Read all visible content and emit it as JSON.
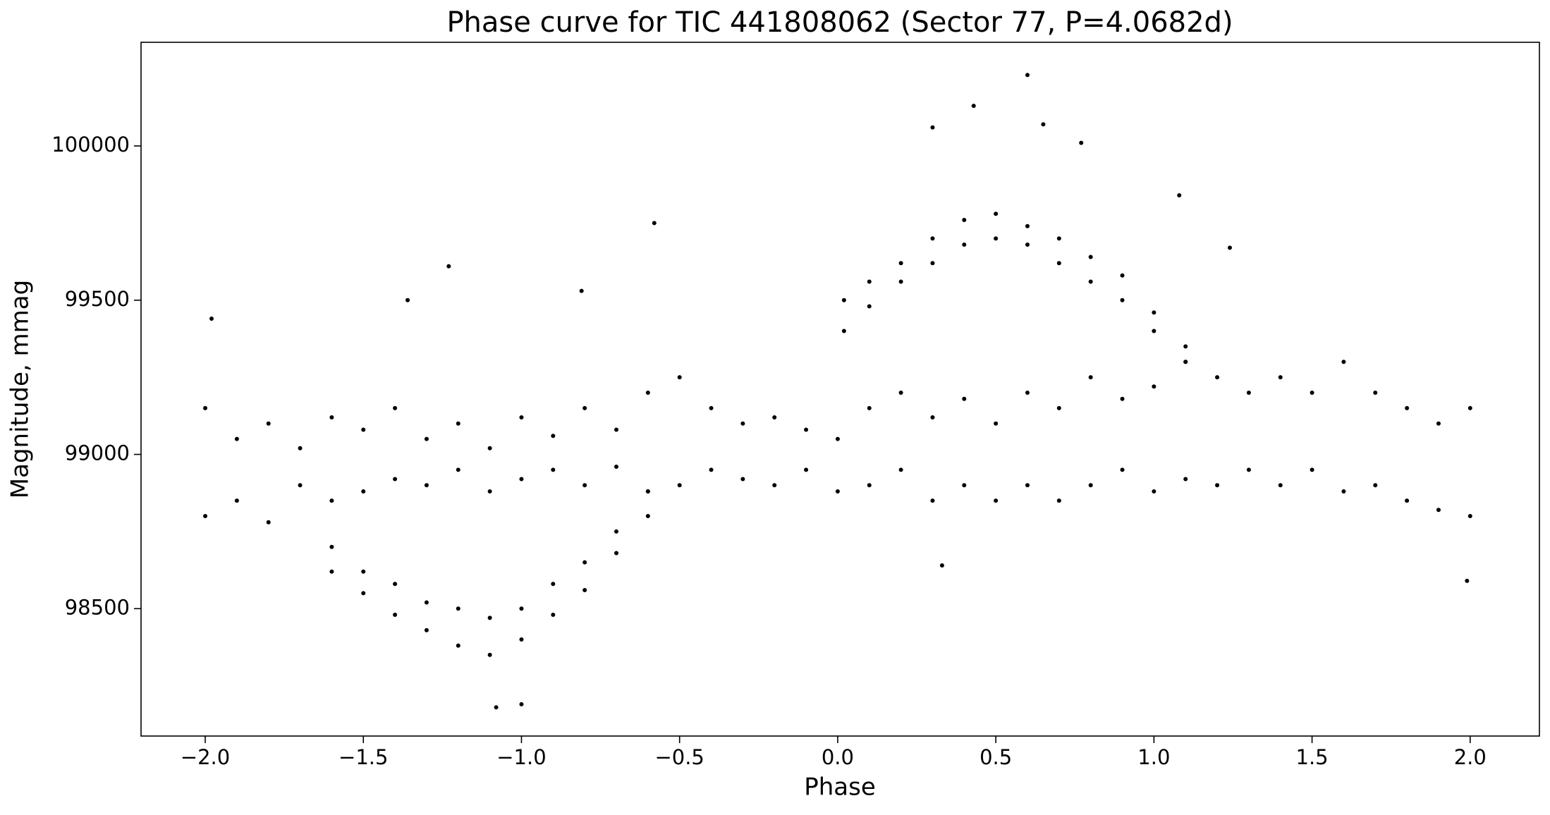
{
  "chart_data": {
    "type": "scatter",
    "title": "Phase curve for TIC 441808062 (Sector 77, P=4.0682d)",
    "x_label": "Phase",
    "y_label": "Magnitude, mmag",
    "color": "#000000",
    "xlim": [
      -2.203,
      2.219
    ],
    "ylim": [
      98087,
      100336
    ],
    "xticks": [
      {
        "value": -2.0,
        "label": "−2.0"
      },
      {
        "value": -1.5,
        "label": "−1.5"
      },
      {
        "value": -1.0,
        "label": "−1.0"
      },
      {
        "value": -0.5,
        "label": "−0.5"
      },
      {
        "value": 0.0,
        "label": "0.0"
      },
      {
        "value": 0.5,
        "label": "0.5"
      },
      {
        "value": 1.0,
        "label": "1.0"
      },
      {
        "value": 1.5,
        "label": "1.5"
      },
      {
        "value": 2.0,
        "label": "2.0"
      }
    ],
    "yticks": [
      98500,
      99000,
      99500,
      100000
    ],
    "grid": false,
    "x": [
      -2.0,
      -2.0,
      -1.9,
      -1.9,
      -1.8,
      -1.8,
      -1.7,
      -1.7,
      -1.6,
      -1.6,
      -1.5,
      -1.5,
      -1.4,
      -1.4,
      -1.3,
      -1.3,
      -1.2,
      -1.2,
      -1.1,
      -1.1,
      -1.0,
      -1.0,
      -0.9,
      -0.9,
      -0.8,
      -0.8,
      -0.7,
      -0.7,
      -0.6,
      -0.6,
      -0.5,
      -0.5,
      -0.4,
      -0.4,
      -0.3,
      -0.3,
      -0.2,
      -0.2,
      -0.1,
      -0.1,
      0.0,
      0.0,
      0.1,
      0.1,
      0.2,
      0.2,
      0.3,
      0.3,
      0.4,
      0.4,
      0.5,
      0.5,
      0.6,
      0.6,
      0.7,
      0.7,
      0.8,
      0.8,
      0.9,
      0.9,
      1.0,
      1.0,
      1.1,
      1.1,
      1.2,
      1.2,
      1.3,
      1.3,
      1.4,
      1.4,
      1.5,
      1.5,
      1.6,
      1.6,
      1.7,
      1.7,
      1.8,
      1.8,
      1.9,
      1.9,
      2.0,
      2.0,
      -1.6,
      -1.6,
      -1.5,
      -1.5,
      -1.4,
      -1.4,
      -1.3,
      -1.3,
      -1.2,
      -1.2,
      -1.1,
      -1.1,
      -1.0,
      -1.0,
      -0.9,
      -0.9,
      -0.8,
      -0.8,
      -0.7,
      -0.7,
      -0.6,
      -0.6,
      0.02,
      0.02,
      0.1,
      0.1,
      0.2,
      0.2,
      0.3,
      0.3,
      0.4,
      0.4,
      0.5,
      0.5,
      0.6,
      0.6,
      0.7,
      0.7,
      0.8,
      0.8,
      0.9,
      0.9,
      1.0,
      1.0,
      1.1,
      1.1,
      0.6,
      0.43,
      0.3,
      0.65,
      0.77,
      -0.58,
      -1.23,
      -1.08,
      -1.0,
      1.08,
      1.24,
      0.33,
      1.99,
      -1.98,
      -1.36,
      -0.81
    ],
    "values": [
      99150,
      98800,
      99050,
      98850,
      99100,
      98780,
      99020,
      98900,
      99120,
      98850,
      99080,
      98880,
      99150,
      98920,
      99050,
      98900,
      99100,
      98950,
      99020,
      98880,
      99120,
      98920,
      99060,
      98950,
      99150,
      98900,
      99080,
      98960,
      99200,
      98880,
      99250,
      98900,
      99150,
      98950,
      99100,
      98920,
      99120,
      98900,
      99080,
      98950,
      99050,
      98880,
      99150,
      98900,
      99200,
      98950,
      99120,
      98850,
      99180,
      98900,
      99100,
      98850,
      99200,
      98900,
      99150,
      98850,
      99250,
      98900,
      99180,
      98950,
      99220,
      98880,
      99300,
      98920,
      99250,
      98900,
      99200,
      98950,
      99250,
      98900,
      99200,
      98950,
      99300,
      98880,
      99200,
      98900,
      99150,
      98850,
      99100,
      98820,
      99150,
      98800,
      98700,
      98620,
      98620,
      98550,
      98580,
      98480,
      98520,
      98430,
      98500,
      98380,
      98470,
      98350,
      98500,
      98400,
      98580,
      98480,
      98650,
      98560,
      98750,
      98680,
      98880,
      98800,
      99400,
      99500,
      99480,
      99560,
      99560,
      99620,
      99620,
      99700,
      99680,
      99760,
      99700,
      99780,
      99680,
      99740,
      99620,
      99700,
      99560,
      99640,
      99500,
      99580,
      99400,
      99460,
      99300,
      99350,
      100230,
      100130,
      100060,
      100070,
      100010,
      99750,
      99610,
      98180,
      98190,
      99840,
      99670,
      98640,
      98590,
      99440,
      99500,
      99530
    ]
  }
}
